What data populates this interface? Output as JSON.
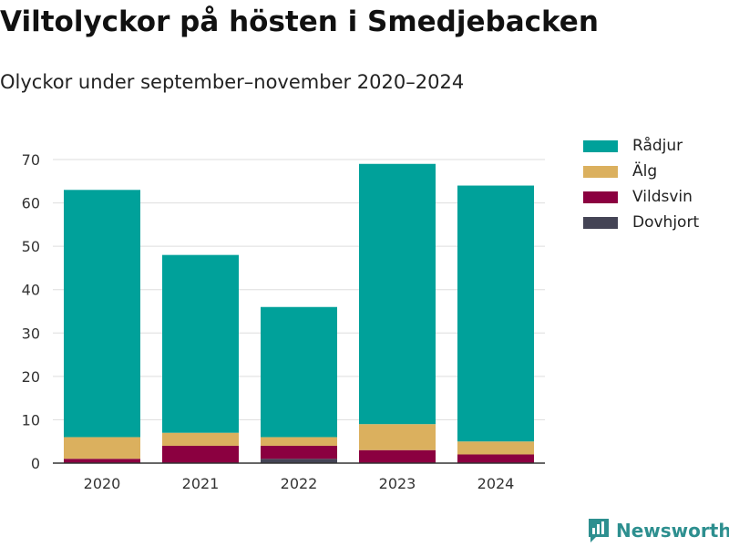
{
  "chart_data": {
    "type": "bar",
    "stacked": true,
    "title": "Viltolyckor på hösten i Smedjebacken",
    "subtitle": "Olyckor under september–november 2020–2024",
    "categories": [
      "2020",
      "2021",
      "2022",
      "2023",
      "2024"
    ],
    "series": [
      {
        "name": "Dovhjort",
        "color": "#444455",
        "values": [
          0,
          0,
          1,
          0,
          0
        ]
      },
      {
        "name": "Vildsvin",
        "color": "#8b0040",
        "values": [
          1,
          4,
          3,
          3,
          2
        ]
      },
      {
        "name": "Älg",
        "color": "#dbb05e",
        "values": [
          5,
          3,
          2,
          6,
          3
        ]
      },
      {
        "name": "Rådjur",
        "color": "#00a19a",
        "values": [
          57,
          41,
          30,
          60,
          59
        ]
      }
    ],
    "legend_order": [
      "Rådjur",
      "Älg",
      "Vildsvin",
      "Dovhjort"
    ],
    "y_ticks": [
      "0",
      "10",
      "20",
      "30",
      "40",
      "50",
      "60",
      "70"
    ],
    "ylim": [
      0,
      70
    ],
    "xlabel": "",
    "ylabel": "",
    "legend_position": "right"
  },
  "brand": {
    "name": "Newsworthy",
    "color": "#2d8f8f"
  }
}
